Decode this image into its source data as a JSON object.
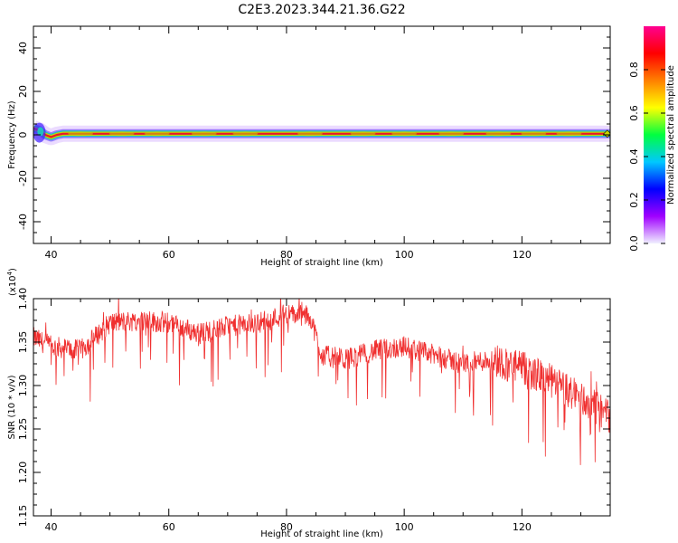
{
  "title": "C2E3.2023.344.21.36.G22",
  "colors": {
    "snr_line": "#f03030",
    "spectrum_ridge": "#e8162a",
    "spectrum_core": "#c8d400",
    "spectrum_edge": "#20c0c0",
    "spectrum_halo": "#b070ff",
    "colorbar_stops": [
      "#f0f0ff",
      "#a000ff",
      "#0000ff",
      "#00c8ff",
      "#00ff40",
      "#ffff00",
      "#ff8000",
      "#ff0000",
      "#ff0090"
    ]
  },
  "chart_data": [
    {
      "type": "heatmap",
      "name": "spectrogram",
      "xlabel": "Height of straight line (km)",
      "ylabel": "Frequency (Hz)",
      "xlim": [
        37,
        135
      ],
      "ylim": [
        -50,
        50
      ],
      "xticks": [
        40,
        60,
        80,
        100,
        120
      ],
      "xtick_labels": [
        "40",
        "60",
        "80",
        "100",
        "120"
      ],
      "yticks": [
        -40,
        -20,
        0,
        20,
        40
      ],
      "ytick_labels": [
        "-40",
        "-20",
        "0",
        "20",
        "40"
      ],
      "ridge_frequency": {
        "x": [
          37,
          38,
          39,
          40,
          41,
          42,
          135
        ],
        "y": [
          3,
          2,
          0,
          -1,
          0,
          0.5,
          0.5
        ]
      },
      "colorbar": {
        "label": "Normalized spectral amplitude",
        "range": [
          0,
          1
        ],
        "ticks": [
          0.0,
          0.2,
          0.4,
          0.6,
          0.8
        ],
        "tick_labels": [
          "0.0",
          "0.2",
          "0.4",
          "0.6",
          "0.8"
        ]
      }
    },
    {
      "type": "line",
      "name": "snr",
      "xlabel": "Height of straight line (km)",
      "ylabel": "SNR (10 * v/v)",
      "yscale_label": "(x10",
      "yscale_exponent": "4",
      "xlim": [
        37,
        135
      ],
      "ylim": [
        1.15,
        1.4
      ],
      "xticks": [
        40,
        60,
        80,
        100,
        120
      ],
      "xtick_labels": [
        "40",
        "60",
        "80",
        "100",
        "120"
      ],
      "yticks": [
        1.15,
        1.2,
        1.25,
        1.3,
        1.35,
        1.4
      ],
      "ytick_labels": [
        "1.15",
        "1.20",
        "1.25",
        "1.30",
        "1.35",
        "1.40"
      ],
      "trend": {
        "x": [
          37,
          40,
          45,
          50,
          55,
          60,
          65,
          70,
          75,
          80,
          84,
          86,
          90,
          95,
          100,
          105,
          110,
          115,
          120,
          125,
          130,
          135
        ],
        "y": [
          1.355,
          1.345,
          1.34,
          1.372,
          1.375,
          1.372,
          1.36,
          1.368,
          1.372,
          1.382,
          1.38,
          1.335,
          1.33,
          1.34,
          1.345,
          1.335,
          1.325,
          1.33,
          1.32,
          1.305,
          1.285,
          1.265
        ]
      },
      "noise_amplitude": 0.025
    }
  ]
}
